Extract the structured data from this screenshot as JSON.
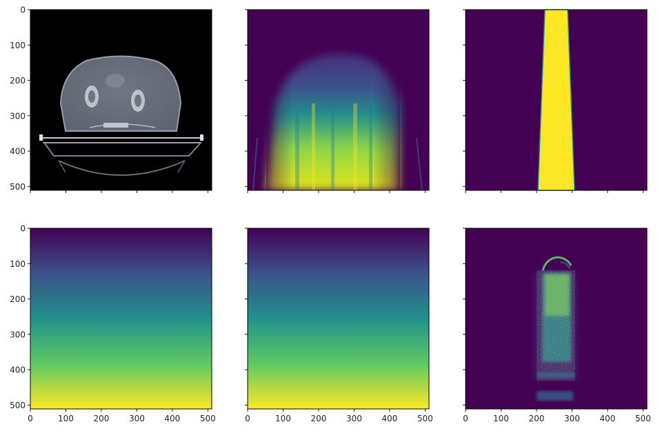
{
  "chart_data": {
    "type": "heatmap",
    "layout": "2 rows x 3 columns, shared axes",
    "colormaps": {
      "gray": [
        "#000000",
        "#ffffff"
      ],
      "viridis": [
        "#440154",
        "#3b528b",
        "#21918c",
        "#5ec962",
        "#fde725"
      ]
    },
    "panels": [
      {
        "id": "ct-slice",
        "row": 0,
        "col": 0,
        "colormap": "gray",
        "content": "axial CT slice of pelvis on couch",
        "show_yticks": true,
        "show_xticks": false
      },
      {
        "id": "dose-projection",
        "row": 0,
        "col": 1,
        "colormap": "viridis",
        "content": "broad beam intensity, increasing toward bottom",
        "show_yticks": false,
        "show_xticks": false
      },
      {
        "id": "beam-mask",
        "row": 0,
        "col": 2,
        "colormap": "viridis",
        "content": "narrow trapezoidal beam mask",
        "show_yticks": false,
        "show_xticks": false
      },
      {
        "id": "depth-gradient-a",
        "row": 1,
        "col": 0,
        "colormap": "viridis",
        "content": "vertical gradient 0 to 1",
        "show_yticks": true,
        "show_xticks": true
      },
      {
        "id": "depth-gradient-b",
        "row": 1,
        "col": 1,
        "colormap": "viridis",
        "content": "vertical gradient 0 to 1",
        "show_yticks": false,
        "show_xticks": true
      },
      {
        "id": "noisy-dose",
        "row": 1,
        "col": 2,
        "colormap": "viridis",
        "content": "noisy narrow dose column",
        "show_yticks": false,
        "show_xticks": true
      }
    ],
    "x_ticks": [
      0,
      100,
      200,
      300,
      400,
      500
    ],
    "y_ticks": [
      0,
      100,
      200,
      300,
      400,
      500
    ],
    "xlim": [
      0,
      511
    ],
    "ylim": [
      511,
      0
    ],
    "beam_mask": {
      "top_x": [
        225,
        290
      ],
      "bottom_x": [
        205,
        310
      ]
    },
    "noisy_column": {
      "x_range": [
        200,
        305
      ],
      "y_range": [
        120,
        590
      ]
    }
  }
}
